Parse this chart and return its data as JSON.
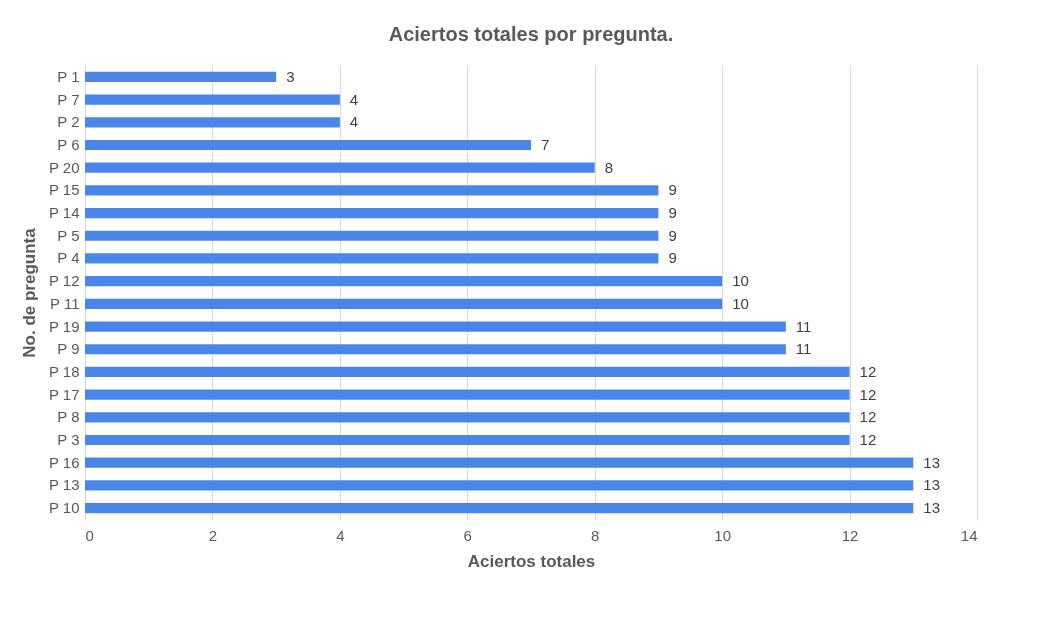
{
  "chart_data": {
    "type": "bar",
    "orientation": "horizontal",
    "title": "Aciertos totales por pregunta.",
    "xlabel": "Aciertos totales",
    "ylabel": "No. de pregunta",
    "categories": [
      "P 1",
      "P 7",
      "P 2",
      "P 6",
      "P 20",
      "P 15",
      "P 14",
      "P 5",
      "P 4",
      "P 12",
      "P 11",
      "P 19",
      "P 9",
      "P 18",
      "P 17",
      "P 8",
      "P 3",
      "P 16",
      "P 13",
      "P 10"
    ],
    "values": [
      3,
      4,
      4,
      7,
      8,
      9,
      9,
      9,
      9,
      10,
      10,
      11,
      11,
      12,
      12,
      12,
      12,
      13,
      13,
      13
    ],
    "color": "#4a86e8",
    "xlim": [
      0,
      14
    ],
    "xticks": [
      0,
      2,
      4,
      6,
      8,
      10,
      12,
      14
    ],
    "grid": "x",
    "data_labels": true
  }
}
